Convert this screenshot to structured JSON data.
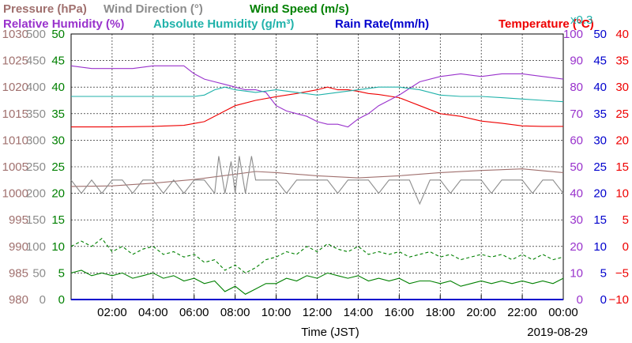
{
  "chart_data": {
    "type": "line",
    "header": {
      "row1": [
        {
          "text": "Pressure (hPa)",
          "color": "#a0706e"
        },
        {
          "text": "Wind Direction (°)",
          "color": "#8c8c8c"
        },
        {
          "text": "Wind Speed (m/s)",
          "color": "#008000"
        }
      ],
      "row2": [
        {
          "text": "Relative Humidity (%)",
          "color": "#9932cc"
        },
        {
          "text": "Absolute Humidity (g/m³)",
          "color": "#20b2aa"
        },
        {
          "text": "Rain Rate(mm/h)",
          "color": "#0000cd"
        },
        {
          "text": "Temperature (°C)",
          "color": "#ee0000"
        }
      ],
      "ah_multiplier": "x0.3",
      "ah_multiplier_color": "#20b2aa"
    },
    "xlabel": "Time (JST)",
    "date": "2019-08-29",
    "x_ticks": [
      "02:00",
      "04:00",
      "06:00",
      "08:00",
      "10:00",
      "12:00",
      "14:00",
      "16:00",
      "18:00",
      "20:00",
      "22:00",
      "00:00"
    ],
    "xlim_hours": [
      0,
      24
    ],
    "axes": {
      "pressure": {
        "color": "#a0706e",
        "ticks": [
          "1030",
          "1025",
          "1020",
          "1015",
          "1010",
          "1005",
          "1000",
          "995",
          "990",
          "985",
          "980"
        ],
        "ylim": [
          980,
          1030
        ]
      },
      "wind_direction": {
        "color": "#8c8c8c",
        "ticks": [
          "500",
          "450",
          "400",
          "350",
          "300",
          "250",
          "200",
          "150",
          "100",
          "50",
          "0"
        ],
        "ylim": [
          0,
          500
        ]
      },
      "wind_speed": {
        "color": "#008000",
        "ticks": [
          "50",
          "45",
          "40",
          "35",
          "30",
          "25",
          "20",
          "15",
          "10",
          "5",
          "0"
        ],
        "ylim": [
          0,
          50
        ]
      },
      "humidity": {
        "color": "#9932cc",
        "ticks": [
          "100",
          "90",
          "80",
          "70",
          "60",
          "50",
          "40",
          "30",
          "20",
          "10",
          "0"
        ],
        "ylim": [
          0,
          100
        ]
      },
      "rain_rate": {
        "color": "#0000cd",
        "ticks": [
          "50",
          "45",
          "40",
          "35",
          "30",
          "25",
          "20",
          "15",
          "10",
          "5",
          "0"
        ],
        "ylim": [
          0,
          50
        ]
      },
      "temperature": {
        "color": "#ee0000",
        "ticks": [
          "40",
          "35",
          "30",
          "25",
          "20",
          "15",
          "10",
          "5",
          "0",
          "−5",
          "−10"
        ],
        "ylim": [
          -10,
          40
        ]
      }
    },
    "series": [
      {
        "key": "temperature",
        "color": "#ee0000",
        "style": "solid",
        "x": [
          0,
          2,
          4,
          5.5,
          6.5,
          7.5,
          8,
          9,
          10,
          11,
          12,
          12.5,
          13,
          13.5,
          14,
          14.5,
          15,
          16,
          17,
          18,
          19,
          20,
          21,
          22,
          23,
          24
        ],
        "y": [
          22.5,
          22.5,
          22.6,
          22.8,
          23.5,
          25.5,
          26.5,
          27.5,
          28.2,
          28.8,
          29.5,
          30,
          29.5,
          29.5,
          29.2,
          28.8,
          28.6,
          28,
          26.5,
          25,
          24.5,
          23.6,
          23.2,
          22.7,
          22.6,
          22.6
        ]
      },
      {
        "key": "relative_humidity",
        "color": "#9932cc",
        "style": "solid",
        "x": [
          0,
          1,
          2,
          3,
          4,
          5,
          5.5,
          6,
          6.5,
          7,
          7.5,
          8,
          8.5,
          9,
          9.5,
          10,
          10.5,
          11,
          11.5,
          12,
          12.5,
          13,
          13.5,
          14,
          14.5,
          15,
          15.5,
          16,
          17,
          18,
          19,
          20,
          21,
          22,
          23,
          24
        ],
        "y": [
          88,
          87,
          87,
          87,
          88,
          88,
          88,
          85,
          83,
          82,
          81,
          80,
          79,
          79,
          78,
          73,
          71,
          70,
          69,
          67,
          66,
          66,
          65,
          68,
          70,
          73,
          75,
          77,
          82,
          84,
          85,
          84,
          85,
          85,
          84,
          83
        ]
      },
      {
        "key": "absolute_humidity",
        "color": "#20b2aa",
        "style": "solid",
        "x": [
          0,
          2,
          4,
          6,
          6.5,
          7,
          7.5,
          8,
          9,
          10,
          11,
          12,
          13,
          14,
          15,
          16,
          17,
          18,
          19,
          20,
          21,
          22,
          23,
          24
        ],
        "y": [
          76.5,
          76.5,
          76.5,
          76.5,
          77,
          79,
          80,
          79,
          78,
          79,
          78,
          77,
          78,
          79,
          80,
          80,
          79,
          77,
          76.5,
          76.5,
          76,
          75.5,
          75,
          74.5
        ]
      },
      {
        "key": "pressure",
        "color": "#a0706e",
        "style": "solid",
        "x": [
          0,
          2,
          4,
          6,
          8,
          9,
          10,
          12,
          14,
          16,
          18,
          20,
          22,
          24
        ],
        "y": [
          1001.3,
          1001.4,
          1001.9,
          1002.6,
          1003.6,
          1004.1,
          1003.9,
          1003.3,
          1002.9,
          1003.3,
          1003.9,
          1004.3,
          1004.6,
          1003.9
        ]
      },
      {
        "key": "wind_direction",
        "color": "#8c8c8c",
        "style": "solid",
        "x": [
          0,
          0.5,
          1,
          1.5,
          2,
          2.5,
          3,
          3.5,
          4,
          4.5,
          5,
          5.5,
          6,
          6.5,
          7,
          7.2,
          7.5,
          7.8,
          8,
          8.2,
          8.5,
          8.8,
          9,
          9.5,
          10,
          10.5,
          11,
          11.5,
          12,
          12.5,
          13,
          13.5,
          14,
          14.5,
          15,
          15.5,
          16,
          16.5,
          17,
          17.5,
          18,
          18.5,
          19,
          19.5,
          20,
          20.5,
          21,
          21.5,
          22,
          22.5,
          23,
          23.5,
          24
        ],
        "y": [
          225,
          200,
          225,
          200,
          225,
          225,
          200,
          225,
          225,
          200,
          225,
          200,
          225,
          225,
          200,
          270,
          200,
          260,
          200,
          270,
          200,
          270,
          225,
          225,
          225,
          200,
          225,
          225,
          225,
          225,
          200,
          225,
          225,
          225,
          200,
          225,
          225,
          225,
          180,
          225,
          225,
          200,
          225,
          225,
          225,
          200,
          225,
          225,
          225,
          200,
          225,
          225,
          200
        ]
      },
      {
        "key": "wind_speed_avg",
        "color": "#008000",
        "style": "solid",
        "x": [
          0,
          0.5,
          1,
          1.5,
          2,
          2.5,
          3,
          3.5,
          4,
          4.5,
          5,
          5.5,
          6,
          6.5,
          7,
          7.5,
          8,
          8.5,
          9,
          9.5,
          10,
          10.5,
          11,
          11.5,
          12,
          12.5,
          13,
          13.5,
          14,
          14.5,
          15,
          15.5,
          16,
          16.5,
          17,
          17.5,
          18,
          18.5,
          19,
          19.5,
          20,
          20.5,
          21,
          21.5,
          22,
          22.5,
          23,
          23.5,
          24
        ],
        "y": [
          5,
          5.5,
          4.5,
          5,
          4.5,
          5,
          4,
          4.5,
          5,
          4,
          4.5,
          3.5,
          4,
          3,
          3.5,
          1.5,
          2.5,
          1,
          2,
          3,
          3,
          4,
          3.5,
          4.5,
          4,
          5,
          4.5,
          4,
          4.5,
          3.5,
          4,
          3.5,
          4,
          3,
          3.5,
          3.5,
          3,
          3.5,
          2.5,
          3,
          3.5,
          3,
          3.5,
          3,
          3.5,
          3,
          3.5,
          3,
          4
        ]
      },
      {
        "key": "wind_speed_max",
        "color": "#008000",
        "style": "dashed",
        "x": [
          0,
          0.5,
          1,
          1.5,
          2,
          2.5,
          3,
          3.5,
          4,
          4.5,
          5,
          5.5,
          6,
          6.5,
          7,
          7.5,
          8,
          8.5,
          9,
          9.5,
          10,
          10.5,
          11,
          11.5,
          12,
          12.5,
          13,
          13.5,
          14,
          14.5,
          15,
          15.5,
          16,
          16.5,
          17,
          17.5,
          18,
          18.5,
          19,
          19.5,
          20,
          20.5,
          21,
          21.5,
          22,
          22.5,
          23,
          23.5,
          24
        ],
        "y": [
          10,
          11,
          10,
          11.5,
          9,
          10,
          8.5,
          9.5,
          10,
          8.5,
          9,
          8,
          8.5,
          7,
          7.5,
          5.5,
          6.5,
          5,
          6,
          7.5,
          8,
          9,
          8.5,
          10,
          9,
          10.5,
          9.5,
          9,
          10,
          8.5,
          9,
          8.5,
          9,
          8,
          8.5,
          9,
          8,
          8.5,
          7.5,
          8,
          8.5,
          8,
          8.5,
          7.5,
          8.5,
          7.5,
          8.5,
          7.5,
          8
        ]
      },
      {
        "key": "rain_rate",
        "color": "#0000cd",
        "style": "solid",
        "x": [
          0,
          24
        ],
        "y": [
          0,
          0
        ]
      }
    ],
    "grid": true
  }
}
